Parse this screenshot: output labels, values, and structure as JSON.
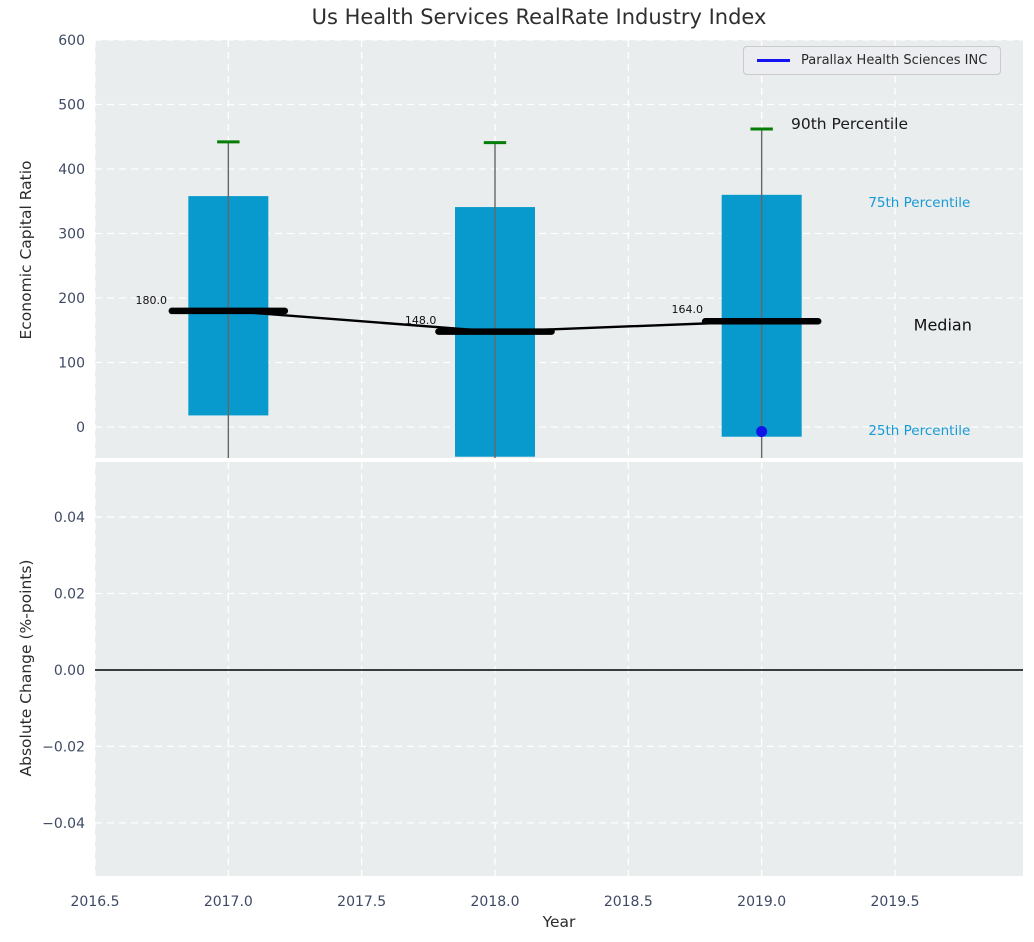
{
  "chart_data": {
    "type": "boxplot",
    "title": "Us Health Services RealRate Industry Index",
    "xlabel": "Year",
    "legend": {
      "label": "Parallax Health Sciences INC",
      "position": "upper right"
    },
    "x_axis": {
      "min": 2016.5,
      "max": 2019.98,
      "ticks": [
        2016.5,
        2017.0,
        2017.5,
        2018.0,
        2018.5,
        2019.0,
        2019.5
      ],
      "tick_labels": [
        "2016.5",
        "2017.0",
        "2017.5",
        "2018.0",
        "2018.5",
        "2019.0",
        "2019.5"
      ]
    },
    "top_panel": {
      "ylabel": "Economic Capital Ratio",
      "ylim": [
        -48,
        600
      ],
      "yticks": [
        0,
        100,
        200,
        300,
        400,
        500,
        600
      ],
      "ytick_labels": [
        "0",
        "100",
        "200",
        "300",
        "400",
        "500",
        "600"
      ],
      "grid": true,
      "box_half_width": 0.15,
      "median_half_width": 0.212,
      "cap_half_width": 0.042,
      "boxes": [
        {
          "year": 2017,
          "p90": 442,
          "q75": 358,
          "median": 180,
          "q25": 18,
          "median_label": "180.0"
        },
        {
          "year": 2018,
          "p90": 441,
          "q75": 341,
          "median": 148,
          "q25": -46,
          "median_label": "148.0"
        },
        {
          "year": 2019,
          "p90": 462,
          "q75": 360,
          "median": 164,
          "q25": -15,
          "median_label": "164.0"
        }
      ],
      "company_series": {
        "name": "Parallax Health Sciences INC",
        "points": [
          {
            "year": 2019,
            "value": -7
          }
        ]
      },
      "annotations": [
        {
          "text": "90th Percentile",
          "x": 2019.11,
          "v": 462,
          "anchor": "start",
          "size": 15.5,
          "color": "#1a1a1a"
        },
        {
          "text": "75th Percentile",
          "x": 2019.4,
          "v": 341,
          "anchor": "start",
          "size": 13.5,
          "color": "#189ad6"
        },
        {
          "text": "Median",
          "x": 2019.57,
          "v": 150,
          "anchor": "start",
          "size": 16,
          "color": "#111111"
        },
        {
          "text": "25th Percentile",
          "x": 2019.4,
          "v": -12,
          "anchor": "start",
          "size": 13.5,
          "color": "#189ad6"
        },
        {
          "text": "180.0",
          "x": 2016.77,
          "v": 191,
          "anchor": "end",
          "size": 11,
          "color": "#111111"
        },
        {
          "text": "148.0",
          "x": 2017.78,
          "v": 160,
          "anchor": "end",
          "size": 11,
          "color": "#111111"
        },
        {
          "text": "164.0",
          "x": 2018.78,
          "v": 177,
          "anchor": "end",
          "size": 11,
          "color": "#111111"
        }
      ]
    },
    "bottom_panel": {
      "ylabel": "Absolute Change (%-points)",
      "ylim": [
        -0.0539,
        0.0544
      ],
      "yticks": [
        0.04,
        0.02,
        0.0,
        -0.02,
        -0.04
      ],
      "ytick_labels": [
        "0.04",
        "0.02",
        "0.00",
        "−0.02",
        "−0.04"
      ],
      "zero_line": 0.0,
      "grid": true
    },
    "colors": {
      "box_fill": "#089acd",
      "percentile_cap": "#067d06",
      "whisker": "#666666",
      "median": "#000000",
      "company": "#1414e8",
      "panel_bg": "#e9edee",
      "grid": "#ffffff",
      "tick_text": "#3e4a63",
      "percentile_text": "#189ad6",
      "zero_line": "#000000"
    }
  }
}
